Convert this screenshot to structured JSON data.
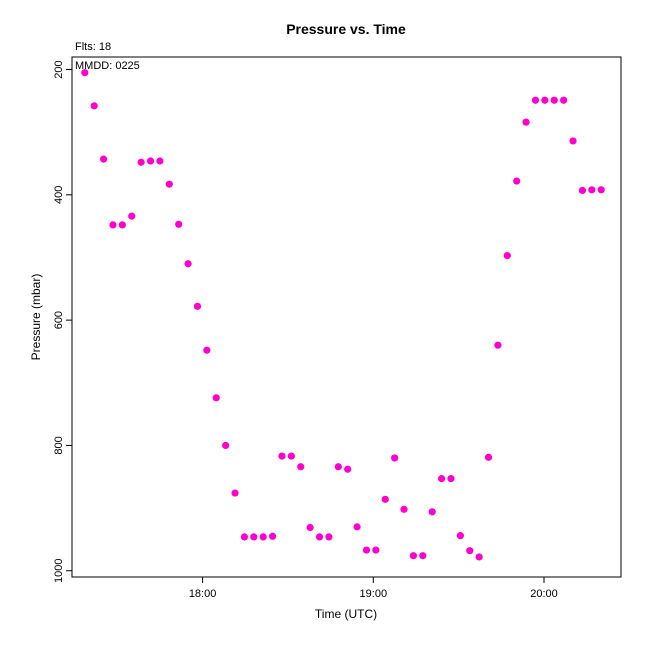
{
  "chart_data": {
    "type": "scatter",
    "title": "Pressure  vs. Time",
    "xlabel": "Time (UTC)",
    "ylabel": "Pressure (mbar)",
    "annotations": [
      "Flts: 18",
      "MMDD: 0225"
    ],
    "x_ticks": [
      {
        "value": 18.0,
        "label": "18:00"
      },
      {
        "value": 19.0,
        "label": "19:00"
      },
      {
        "value": 20.0,
        "label": "20:00"
      }
    ],
    "y_ticks": [
      {
        "value": 200,
        "label": "200"
      },
      {
        "value": 400,
        "label": "400"
      },
      {
        "value": 600,
        "label": "600"
      },
      {
        "value": 800,
        "label": "800"
      },
      {
        "value": 1000,
        "label": "1000"
      }
    ],
    "xlim": [
      17.235,
      20.451
    ],
    "ylim": [
      1010,
      180
    ],
    "y_inverted": true,
    "grid": false,
    "marker_color": "#ff00cc",
    "series": [
      {
        "points": [
          [
            17.31,
            205
          ],
          [
            17.365,
            258
          ],
          [
            17.42,
            343
          ],
          [
            17.475,
            448
          ],
          [
            17.53,
            448
          ],
          [
            17.585,
            434
          ],
          [
            17.64,
            348
          ],
          [
            17.695,
            346
          ],
          [
            17.75,
            346
          ],
          [
            17.805,
            383
          ],
          [
            17.86,
            447
          ],
          [
            17.915,
            510
          ],
          [
            17.97,
            578
          ],
          [
            18.025,
            648
          ],
          [
            18.08,
            724
          ],
          [
            18.135,
            800
          ],
          [
            18.19,
            876
          ],
          [
            18.245,
            946
          ],
          [
            18.3,
            946
          ],
          [
            18.355,
            946
          ],
          [
            18.41,
            945
          ],
          [
            18.465,
            817
          ],
          [
            18.52,
            817
          ],
          [
            18.575,
            834
          ],
          [
            18.63,
            931
          ],
          [
            18.685,
            946
          ],
          [
            18.74,
            946
          ],
          [
            18.795,
            834
          ],
          [
            18.85,
            838
          ],
          [
            18.905,
            930
          ],
          [
            18.96,
            967
          ],
          [
            19.015,
            967
          ],
          [
            19.07,
            886
          ],
          [
            19.125,
            820
          ],
          [
            19.18,
            902
          ],
          [
            19.235,
            976
          ],
          [
            19.29,
            976
          ],
          [
            19.345,
            906
          ],
          [
            19.4,
            853
          ],
          [
            19.455,
            853
          ],
          [
            19.51,
            944
          ],
          [
            19.565,
            968
          ],
          [
            19.62,
            978
          ],
          [
            19.675,
            819
          ],
          [
            19.73,
            640
          ],
          [
            19.785,
            497
          ],
          [
            19.84,
            378
          ],
          [
            19.895,
            284
          ],
          [
            19.95,
            249
          ],
          [
            20.005,
            249
          ],
          [
            20.06,
            249
          ],
          [
            20.115,
            249
          ],
          [
            20.17,
            314
          ],
          [
            20.225,
            393
          ],
          [
            20.28,
            392
          ],
          [
            20.335,
            392
          ]
        ]
      }
    ]
  }
}
